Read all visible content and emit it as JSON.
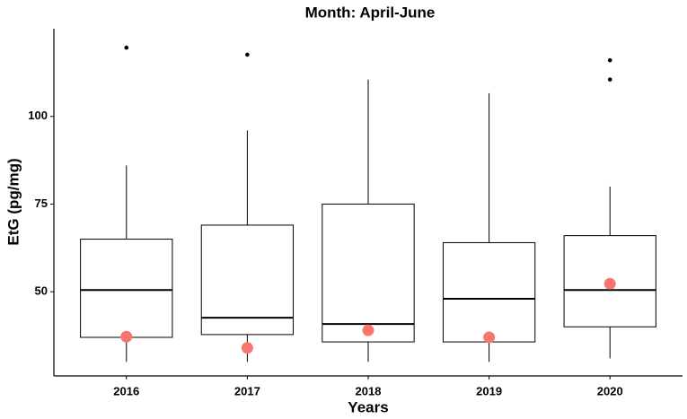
{
  "chart_data": {
    "type": "box",
    "title": "Month: April-June",
    "x_label": "Years",
    "y_label": "EtG (pg/mg)",
    "categories": [
      "2016",
      "2017",
      "2018",
      "2019",
      "2020"
    ],
    "boxes": [
      {
        "min": 30,
        "q1": 37,
        "median": 50.5,
        "q3": 65,
        "max": 86,
        "mean": 37.2,
        "outliers": [
          119.6
        ]
      },
      {
        "min": 30,
        "q1": 37.8,
        "median": 42.6,
        "q3": 69,
        "max": 96,
        "mean": 34,
        "outliers": [
          117.6
        ]
      },
      {
        "min": 30,
        "q1": 35.7,
        "median": 40.8,
        "q3": 75,
        "max": 110.5,
        "mean": 39,
        "outliers": []
      },
      {
        "min": 30,
        "q1": 35.7,
        "median": 48,
        "q3": 64,
        "max": 106.6,
        "mean": 37,
        "outliers": []
      },
      {
        "min": 31,
        "q1": 40,
        "median": 50.5,
        "q3": 66,
        "max": 80,
        "mean": 52.3,
        "outliers": [
          116,
          110.5
        ]
      }
    ],
    "box_color": "#000000",
    "mean_color": "#f8766d",
    "outlier_color": "#000000",
    "ylim": [
      26,
      125
    ],
    "yticks": [
      50,
      75,
      100
    ],
    "grid": false
  }
}
